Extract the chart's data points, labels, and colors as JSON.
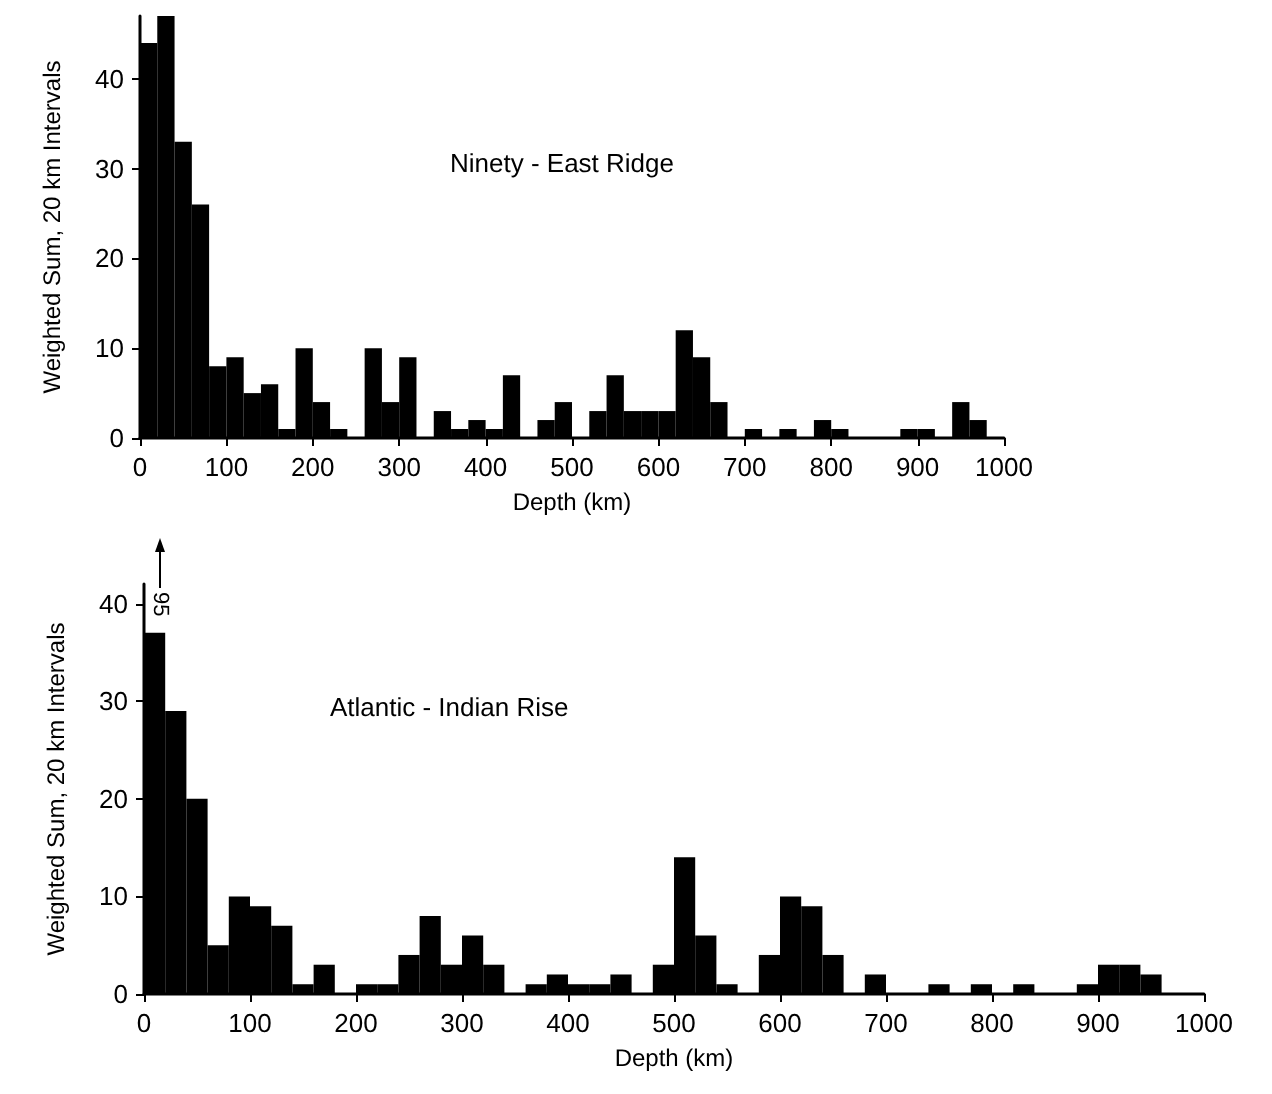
{
  "chart_data": [
    {
      "type": "histogram",
      "title": "Ninety - East Ridge",
      "xlabel": "Depth (km)",
      "ylabel": "Weighted Sum, 20 km Intervals",
      "color": "#000000",
      "bins": [
        0,
        20,
        40,
        60,
        80,
        100,
        120,
        140,
        160,
        180,
        200,
        220,
        240,
        260,
        280,
        300,
        320,
        340,
        360,
        380,
        400,
        420,
        440,
        460,
        480,
        500,
        520,
        540,
        560,
        580,
        600,
        620,
        640,
        660,
        680,
        700,
        720,
        740,
        760,
        780,
        800,
        820,
        840,
        860,
        880,
        900,
        920,
        940,
        960,
        980,
        1000
      ],
      "values": [
        44,
        47,
        33,
        26,
        8,
        9,
        5,
        6,
        1,
        10,
        4,
        1,
        0,
        10,
        4,
        9,
        0,
        3,
        1,
        2,
        1,
        7,
        0,
        2,
        4,
        0,
        3,
        7,
        3,
        3,
        3,
        12,
        9,
        4,
        0,
        1,
        0,
        1,
        0,
        2,
        1,
        0,
        0,
        0,
        1,
        1,
        0,
        4,
        2,
        0
      ],
      "xlim": [
        0,
        1000
      ],
      "ylim": [
        0,
        47
      ],
      "xticks": [
        0,
        100,
        200,
        300,
        400,
        500,
        600,
        700,
        800,
        900,
        1000
      ],
      "yticks": [
        0,
        10,
        20,
        30,
        40
      ],
      "grid": false
    },
    {
      "type": "histogram",
      "title": "Atlantic - Indian Rise",
      "xlabel": "Depth (km)",
      "ylabel": "Weighted Sum, 20 km Intervals",
      "color": "#000000",
      "bins": [
        0,
        20,
        40,
        60,
        80,
        100,
        120,
        140,
        160,
        180,
        200,
        220,
        240,
        260,
        280,
        300,
        320,
        340,
        360,
        380,
        400,
        420,
        440,
        460,
        480,
        500,
        520,
        540,
        560,
        580,
        600,
        620,
        640,
        660,
        680,
        700,
        720,
        740,
        760,
        780,
        800,
        820,
        840,
        860,
        880,
        900,
        920,
        940,
        960,
        980,
        1000
      ],
      "values": [
        37,
        29,
        20,
        5,
        10,
        9,
        7,
        1,
        3,
        0,
        1,
        1,
        4,
        8,
        3,
        6,
        3,
        0,
        1,
        2,
        1,
        1,
        2,
        0,
        3,
        14,
        6,
        1,
        0,
        4,
        10,
        9,
        4,
        0,
        2,
        0,
        0,
        1,
        0,
        1,
        0,
        1,
        0,
        0,
        1,
        3,
        3,
        2,
        0,
        0
      ],
      "xlim": [
        0,
        1000
      ],
      "ylim": [
        0,
        42
      ],
      "xticks": [
        0,
        100,
        200,
        300,
        400,
        500,
        600,
        700,
        800,
        900,
        1000
      ],
      "yticks": [
        0,
        10,
        20,
        30,
        40
      ],
      "grid": false,
      "annotations": [
        "95"
      ]
    }
  ]
}
